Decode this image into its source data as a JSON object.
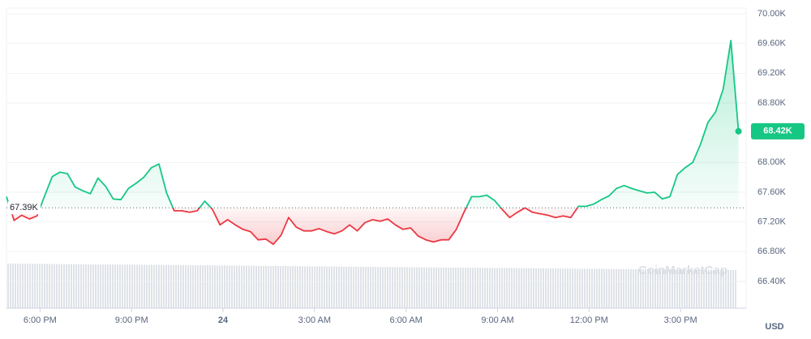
{
  "chart_data": {
    "type": "line",
    "x": [
      16.9,
      17.15,
      17.4,
      17.65,
      17.9,
      18.15,
      18.4,
      18.65,
      18.9,
      19.15,
      19.4,
      19.65,
      19.9,
      20.15,
      20.4,
      20.65,
      20.9,
      21.15,
      21.4,
      21.65,
      21.9,
      22.15,
      22.4,
      22.65,
      22.9,
      23.15,
      23.4,
      23.65,
      23.9,
      24.15,
      24.4,
      24.65,
      24.9,
      25.15,
      25.4,
      25.65,
      25.9,
      26.15,
      26.4,
      26.65,
      26.9,
      27.15,
      27.4,
      27.65,
      27.9,
      28.15,
      28.4,
      28.65,
      28.9,
      29.15,
      29.4,
      29.65,
      29.9,
      30.15,
      30.4,
      30.65,
      30.9,
      31.15,
      31.4,
      31.65,
      31.9,
      32.15,
      32.4,
      32.65,
      32.9,
      33.15,
      33.4,
      33.65,
      33.9,
      34.15,
      34.4,
      34.65,
      34.9,
      35.15,
      35.4,
      35.65,
      35.9,
      36.15,
      36.4,
      36.65,
      36.9,
      37.15,
      37.4,
      37.65,
      37.9,
      38.15,
      38.4,
      38.65,
      38.9,
      39.15,
      39.4,
      39.65,
      39.9,
      40.15,
      40.4,
      40.65,
      40.9
    ],
    "values": [
      67540,
      67220,
      67290,
      67240,
      67280,
      67550,
      67810,
      67870,
      67850,
      67670,
      67620,
      67580,
      67790,
      67680,
      67510,
      67500,
      67650,
      67720,
      67800,
      67930,
      67980,
      67590,
      67350,
      67350,
      67330,
      67350,
      67480,
      67370,
      67160,
      67230,
      67160,
      67100,
      67070,
      66960,
      66970,
      66900,
      67020,
      67260,
      67130,
      67080,
      67080,
      67110,
      67070,
      67040,
      67080,
      67160,
      67080,
      67190,
      67230,
      67210,
      67240,
      67160,
      67100,
      67120,
      67010,
      66960,
      66930,
      66960,
      66960,
      67100,
      67330,
      67540,
      67540,
      67560,
      67490,
      67370,
      67260,
      67330,
      67390,
      67330,
      67310,
      67290,
      67260,
      67280,
      67260,
      67410,
      67410,
      67440,
      67500,
      67550,
      67650,
      67690,
      67650,
      67620,
      67590,
      67600,
      67510,
      67540,
      67840,
      67930,
      68000,
      68240,
      68540,
      68680,
      68990,
      69640,
      68420
    ],
    "value_labels": [
      null,
      null,
      null,
      null,
      null,
      null,
      null,
      null,
      null,
      null,
      null,
      null,
      null,
      null,
      null,
      null,
      null,
      null,
      null,
      null,
      null,
      null,
      null,
      null,
      null,
      null,
      null,
      null,
      null,
      null,
      null,
      null,
      null,
      null,
      null,
      null,
      null,
      null,
      null,
      null,
      null,
      null,
      null,
      null,
      null,
      null,
      null,
      null,
      null,
      null,
      null,
      null,
      null,
      null,
      null,
      null,
      null,
      null,
      null,
      null,
      null,
      null,
      null,
      null,
      null,
      null,
      null,
      null,
      null,
      null,
      null,
      null,
      null,
      null,
      null,
      null,
      null,
      null,
      null,
      null,
      null,
      null,
      null,
      null,
      null,
      null,
      null,
      null,
      null,
      null,
      null,
      null,
      null,
      null,
      null,
      null,
      "68.42K"
    ],
    "baseline": {
      "value": 67390,
      "label": "67.39K"
    },
    "color_up": "#16c784",
    "color_down": "#ea3943",
    "xlim": [
      16.9,
      41.15
    ],
    "xticks": [
      {
        "value": 18,
        "label": "6:00 PM"
      },
      {
        "value": 21,
        "label": "9:00 PM"
      },
      24,
      {
        "value": 27,
        "label": "3:00 AM"
      },
      {
        "value": 30,
        "label": "6:00 AM"
      },
      {
        "value": 33,
        "label": "9:00 AM"
      },
      {
        "value": 36,
        "label": "12:00 PM"
      },
      {
        "value": 39,
        "label": "3:00 PM"
      }
    ],
    "xtick_labels_override": null,
    "ylim": [
      66040,
      70000
    ],
    "yticks": [
      {
        "value": 66400,
        "label": "66.40K"
      },
      {
        "value": 66800,
        "label": "66.80K"
      },
      {
        "value": 67200,
        "label": "67.20K"
      },
      {
        "value": 67600,
        "label": "67.60K"
      },
      {
        "value": 68000,
        "label": "68.00K"
      },
      {
        "value": 68800,
        "label": "68.80K"
      },
      {
        "value": 69200,
        "label": "69.20K"
      },
      {
        "value": 69600,
        "label": "69.60K"
      },
      {
        "value": 70000,
        "label": "70.00K"
      }
    ],
    "grid": true,
    "currency": "USD",
    "watermark": "CoinMarketCap"
  }
}
